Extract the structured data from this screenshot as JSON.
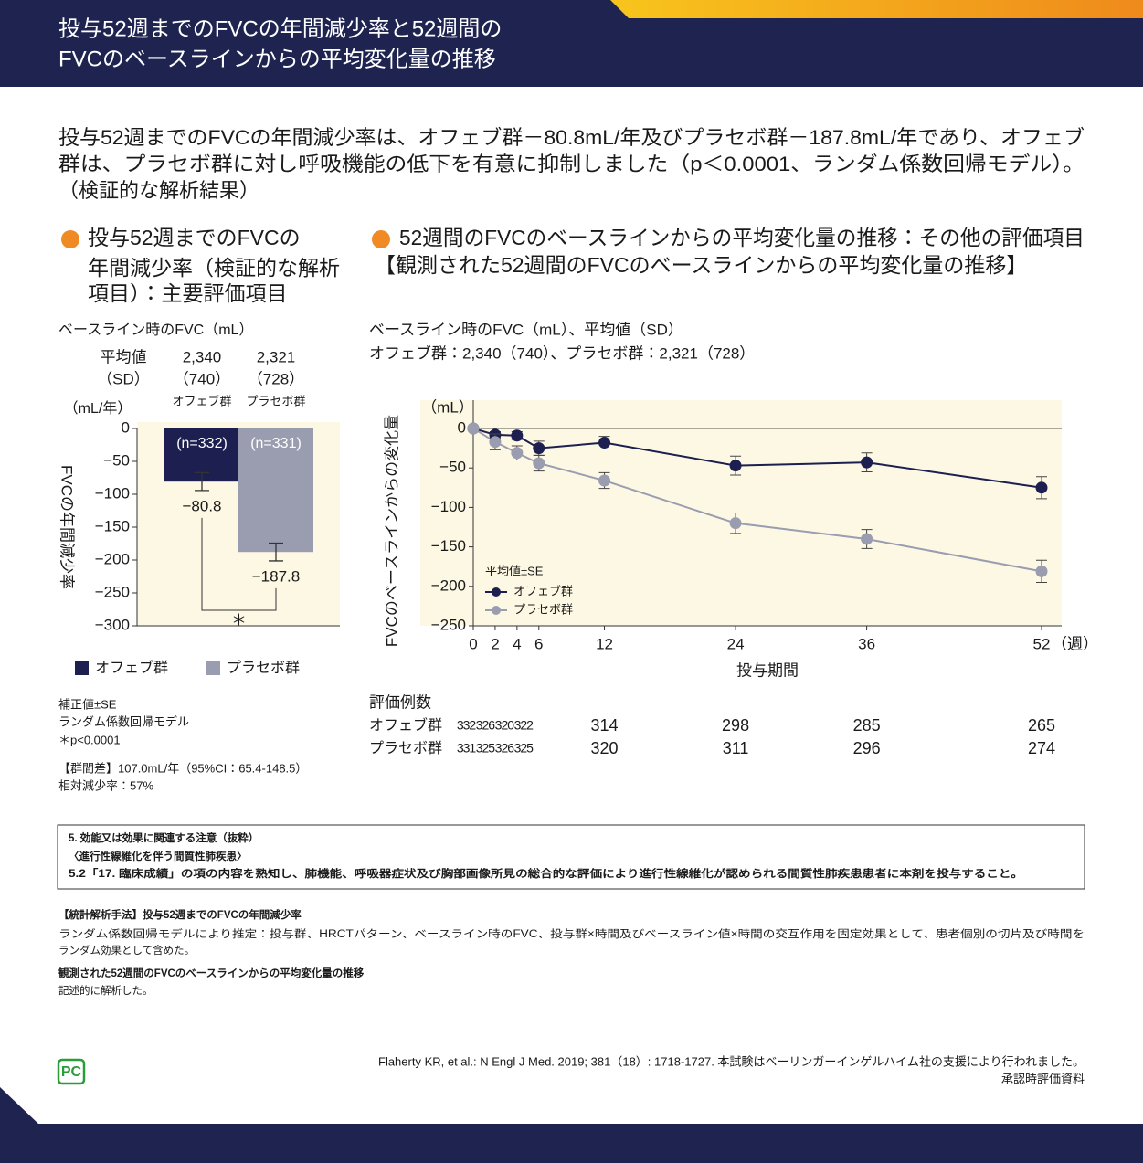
{
  "header": {
    "title_lines": [
      "投与52週までのFVCの年間減少率と52週間の",
      "FVCのベースラインからの平均変化量の推移"
    ]
  },
  "lead": {
    "lines": [
      "投与52週までのFVCの年間減少率は、オフェブ群－80.8mL/年及びプラセボ群－187.8mL/年であり、オフェブ",
      "群は、プラセボ群に対し呼吸機能の低下を有意に抑制しました（p＜0.0001、ランダム係数回帰モデル）。",
      "（検証的な解析結果）"
    ]
  },
  "chart_data": [
    {
      "type": "bar",
      "title_lines": [
        "投与52週までのFVCの",
        "年間減少率（検証的な解析",
        "項目）：主要評価項目"
      ],
      "baseline_title": "ベースライン時のFVC（mL）",
      "baseline_rows": [
        [
          "平均値",
          "2,340",
          "2,321"
        ],
        [
          "（SD）",
          "（740）",
          "（728）"
        ]
      ],
      "y_unit": "（mL/年）",
      "y_label": "FVCの年間減少率",
      "categories": [
        "オフェブ群",
        "プラセボ群"
      ],
      "colors": [
        "#1c1f4f",
        "#9a9cb0"
      ],
      "n_labels": [
        "(n=332)",
        "(n=331)"
      ],
      "values": [
        -80.8,
        -187.8
      ],
      "value_labels": [
        "−80.8",
        "−187.8"
      ],
      "errors": [
        13.5,
        13.5
      ],
      "ylim": [
        -300,
        0
      ],
      "yticks": [
        0,
        {
          "value": -50,
          "label": "−50"
        },
        {
          "value": -100,
          "label": "−100"
        },
        {
          "value": -150,
          "label": "−150"
        },
        {
          "value": -200,
          "label": "−200"
        },
        {
          "value": -250,
          "label": "−250"
        },
        {
          "value": -300,
          "label": "−300"
        }
      ],
      "significance": "＊",
      "footnotes": [
        "補正値±SE",
        "ランダム係数回帰モデル",
        "＊p<0.0001",
        "【群間差】107.0mL/年（95%CI：65.4-148.5）",
        "相対減少率：57%"
      ]
    },
    {
      "type": "line",
      "title_lines": [
        "52週間のFVCのベースラインからの平均変化量の推移：その他の評価項目",
        "【観測された52週間のFVCのベースラインからの平均変化量の推移】"
      ],
      "baseline_lines": [
        "ベースライン時のFVC（mL）、平均値（SD）",
        "オフェブ群：2,340（740）、プラセボ群：2,321（728）"
      ],
      "y_unit": "（mL）",
      "y_label": "FVCのベースラインからの変化量",
      "x_label": "投与期間",
      "x_unit": "（週）",
      "x": [
        0,
        2,
        4,
        6,
        12,
        24,
        36,
        52
      ],
      "xlim": [
        0,
        52
      ],
      "xticks": [
        0,
        2,
        4,
        6,
        12,
        24,
        36,
        52
      ],
      "ylim": [
        -250,
        0
      ],
      "yticks": [
        0,
        {
          "value": -50,
          "label": "−50"
        },
        {
          "value": -100,
          "label": "−100"
        },
        {
          "value": -150,
          "label": "−150"
        },
        {
          "value": -200,
          "label": "−200"
        },
        {
          "value": -250,
          "label": "−250"
        }
      ],
      "legend_title": "平均値±SE",
      "series": [
        {
          "name": "オフェブ群",
          "color": "#1c1f4f",
          "values": [
            0,
            -8,
            -9,
            -25,
            -18,
            -47,
            -43,
            -75
          ],
          "errors": [
            0,
            4,
            5,
            9,
            8,
            12,
            12,
            14
          ]
        },
        {
          "name": "プラセボ群",
          "color": "#9a9cb0",
          "values": [
            0,
            -17,
            -31,
            -44,
            -66,
            -120,
            -140,
            -181
          ],
          "errors": [
            0,
            10,
            9,
            10,
            10,
            13,
            12,
            14
          ]
        }
      ]
    }
  ],
  "counts_table": {
    "title": "評価例数",
    "rows": [
      {
        "name": "オフェブ群",
        "values": [
          332,
          326,
          320,
          322,
          314,
          298,
          285,
          265
        ]
      },
      {
        "name": "プラセボ群",
        "values": [
          331,
          325,
          326,
          325,
          320,
          311,
          296,
          274
        ]
      }
    ]
  },
  "notes_box": {
    "lines": [
      "5. 効能又は効果に関連する注意（抜粋）",
      "〈進行性線維化を伴う間質性肺疾患〉",
      "5.2「17. 臨床成績」の項の内容を熟知し、肺機能、呼吸器症状及び胸部画像所見の総合的な評価により進行性線維化が認められる間質性肺疾患患者に本剤を投与すること。"
    ]
  },
  "methods": {
    "lines": [
      "【統計解析手法】投与52週までのFVCの年間減少率",
      "ランダム係数回帰モデルにより推定：投与群、HRCTパターン、ベースライン時のFVC、投与群×時間及びベースライン値×時間の交互作用を固定効果として、患者個別の切片及び時間を",
      "ランダム効果として含めた。",
      "観測された52週間のFVCのベースラインからの平均変化量の推移",
      "記述的に解析した。"
    ]
  },
  "citation": "Flaherty KR, et al.: N Engl J Med. 2019; 381（18）: 1718-1727. 本試験はベーリンガーインゲルハイム社の支援により行われました。",
  "source": "承認時評価資料",
  "logo": "PC"
}
